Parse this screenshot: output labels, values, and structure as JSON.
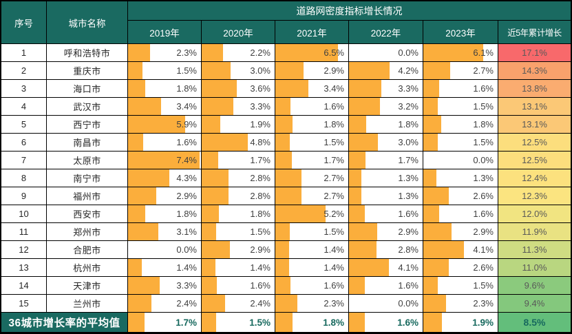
{
  "styles": {
    "header_bg": "#1A6A61",
    "bar_color": "#FBAE3C",
    "value_text_color": "#3F3F3F",
    "cumulative_text_color": "#595959",
    "footer_text_color": "#17695E"
  },
  "chart_data": {
    "type": "table",
    "title": "道路网密度指标增长情况",
    "columns": [
      "序号",
      "城市名称",
      "2019年",
      "2020年",
      "2021年",
      "2022年",
      "2023年",
      "近5年累计增长"
    ],
    "bar_scale_max": 7.4,
    "legend_position": "none",
    "series": [
      {
        "no": "1",
        "name": "呼和浩特市",
        "values": [
          2.3,
          2.2,
          6.5,
          0.0,
          6.1
        ],
        "cumulative": 17.1,
        "cum_color": "#F8696B"
      },
      {
        "no": "2",
        "name": "重庆市",
        "values": [
          1.5,
          3.0,
          2.9,
          4.2,
          2.7
        ],
        "cumulative": 14.3,
        "cum_color": "#F9A16C"
      },
      {
        "no": "3",
        "name": "海口市",
        "values": [
          1.8,
          3.6,
          3.4,
          3.3,
          1.6
        ],
        "cumulative": 13.8,
        "cum_color": "#FAAC70"
      },
      {
        "no": "4",
        "name": "武汉市",
        "values": [
          3.4,
          3.3,
          1.6,
          3.2,
          1.5
        ],
        "cumulative": 13.1,
        "cum_color": "#FBC876"
      },
      {
        "no": "5",
        "name": "西宁市",
        "values": [
          5.9,
          1.9,
          1.8,
          1.8,
          1.8
        ],
        "cumulative": 13.1,
        "cum_color": "#FBC876"
      },
      {
        "no": "6",
        "name": "南昌市",
        "values": [
          1.6,
          4.8,
          1.5,
          3.0,
          1.5
        ],
        "cumulative": 12.5,
        "cum_color": "#FCDE7D"
      },
      {
        "no": "7",
        "name": "太原市",
        "values": [
          7.4,
          1.7,
          1.7,
          1.7,
          0.0
        ],
        "cumulative": 12.5,
        "cum_color": "#FCDE7D"
      },
      {
        "no": "8",
        "name": "南宁市",
        "values": [
          4.3,
          2.8,
          2.7,
          1.3,
          1.3
        ],
        "cumulative": 12.4,
        "cum_color": "#FCE17E"
      },
      {
        "no": "9",
        "name": "福州市",
        "values": [
          2.9,
          2.8,
          2.7,
          1.3,
          2.6
        ],
        "cumulative": 12.3,
        "cum_color": "#FBE480"
      },
      {
        "no": "10",
        "name": "西安市",
        "values": [
          1.8,
          1.8,
          5.2,
          1.6,
          1.6
        ],
        "cumulative": 12.0,
        "cum_color": "#F1E481"
      },
      {
        "no": "11",
        "name": "郑州市",
        "values": [
          3.1,
          1.5,
          1.5,
          2.9,
          2.9
        ],
        "cumulative": 11.9,
        "cum_color": "#E9E282"
      },
      {
        "no": "12",
        "name": "合肥市",
        "values": [
          0.0,
          2.9,
          1.4,
          2.8,
          4.1
        ],
        "cumulative": 11.3,
        "cum_color": "#CFDC82"
      },
      {
        "no": "13",
        "name": "杭州市",
        "values": [
          1.4,
          1.4,
          1.4,
          4.1,
          2.6
        ],
        "cumulative": 11.0,
        "cum_color": "#B9D680"
      },
      {
        "no": "14",
        "name": "天津市",
        "values": [
          3.3,
          1.6,
          1.6,
          1.6,
          1.5
        ],
        "cumulative": 9.6,
        "cum_color": "#8BCA7D"
      },
      {
        "no": "15",
        "name": "兰州市",
        "values": [
          2.4,
          2.4,
          2.3,
          0.0,
          2.3
        ],
        "cumulative": 9.4,
        "cum_color": "#84C87D"
      }
    ],
    "footer": {
      "name": "36城市增长率的平均值",
      "values": [
        1.7,
        1.5,
        1.8,
        1.6,
        1.9
      ],
      "cumulative": 8.5,
      "cum_color": "#63BE7B"
    }
  }
}
